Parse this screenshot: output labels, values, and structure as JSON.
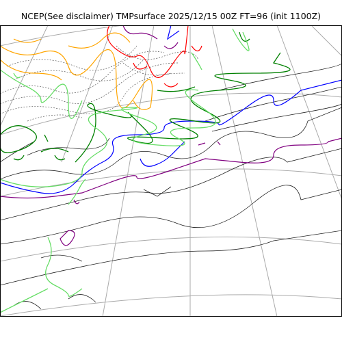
{
  "figure": {
    "title": "NCEP(See disclaimer) TMPsurface 2025/12/15 00Z FT=96 (init 1100Z)"
  },
  "map": {
    "variable": "TMPsurface",
    "model": "NCEP",
    "valid": "2025/12/15 00Z",
    "forecast_hour": 96,
    "init": "1100Z",
    "contour_colors": {
      "black_thin": "#222222",
      "black_dashed": "#555555",
      "blue": "#0000ff",
      "purple": "#800080",
      "green": "#008000",
      "light_green": "#66dd66",
      "orange": "#ffa500",
      "red": "#ff0000",
      "graticule": "#aaaaaa"
    }
  }
}
